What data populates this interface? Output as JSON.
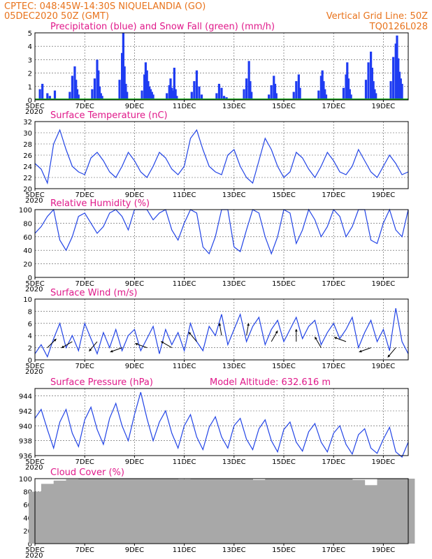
{
  "header": {
    "left_line1": "CPTEC:    048:45W-14:30S   NIQUELANDIA (GO)",
    "left_line2": "05DEC2020 50Z (GMT)",
    "right_line1": "Vertical Grid Line: 50Z",
    "right_line2": "TQ0126L028"
  },
  "x_axis": {
    "tick_labels": [
      "5DEC",
      "7DEC",
      "9DEC",
      "11DEC",
      "13DEC",
      "15DEC",
      "17DEC",
      "19DEC"
    ],
    "year_label": "2020"
  },
  "colors": {
    "precip": "#1f3cf2",
    "snow": "#1aa51a",
    "line": "#2244e6",
    "cloud": "#a8a8a8",
    "header": "#e8731c",
    "title": "#e0198a"
  },
  "chart_data": [
    {
      "type": "bar",
      "title": "Precipitation (blue) and Snow Fall (green) (mm/h)",
      "ylim": [
        0,
        5
      ],
      "yticks": [
        0,
        1,
        2,
        3,
        4,
        5
      ],
      "x_unit": "days since 05DEC 00Z",
      "series": [
        {
          "name": "Precipitation",
          "x": [
            0.2,
            0.3,
            0.5,
            0.6,
            0.8,
            1.4,
            1.5,
            1.6,
            1.65,
            1.7,
            1.75,
            2.3,
            2.4,
            2.5,
            2.55,
            2.6,
            2.65,
            2.7,
            3.4,
            3.5,
            3.55,
            3.6,
            3.65,
            3.7,
            4.3,
            4.4,
            4.45,
            4.5,
            4.55,
            4.6,
            4.65,
            4.7,
            4.75,
            5.3,
            5.4,
            5.45,
            5.5,
            5.55,
            5.6,
            5.65,
            5.7,
            6.3,
            6.4,
            6.5,
            6.6,
            6.7,
            7.3,
            7.4,
            7.5,
            7.6,
            7.7,
            8.4,
            8.5,
            8.6,
            8.65,
            8.7,
            9.4,
            9.5,
            9.6,
            9.65,
            9.7,
            10.4,
            10.5,
            10.6,
            10.65,
            11.4,
            11.5,
            11.55,
            11.6,
            11.65,
            11.7,
            12.4,
            12.5,
            12.55,
            12.6,
            12.65,
            12.7,
            13.3,
            13.4,
            13.5,
            13.55,
            13.6,
            13.65,
            13.7,
            14.3,
            14.4,
            14.5,
            14.55,
            14.6,
            14.65,
            14.7,
            14.75
          ],
          "values": [
            0.8,
            1.2,
            0.5,
            0.3,
            0.7,
            0.6,
            1.8,
            2.5,
            1.5,
            0.8,
            0.4,
            0.8,
            1.6,
            3.0,
            2.2,
            1.0,
            0.5,
            0.3,
            1.5,
            3.5,
            5.0,
            2.5,
            1.2,
            0.6,
            0.7,
            1.9,
            2.8,
            2.2,
            1.4,
            1.0,
            0.8,
            0.6,
            0.4,
            0.5,
            1.1,
            1.6,
            0.9,
            0.7,
            2.4,
            0.8,
            0.3,
            0.6,
            1.4,
            2.2,
            1.0,
            0.4,
            0.5,
            1.2,
            0.9,
            0.3,
            0.2,
            0.8,
            1.6,
            2.9,
            1.4,
            0.6,
            0.4,
            1.1,
            1.8,
            1.2,
            0.5,
            0.6,
            1.4,
            1.9,
            0.9,
            0.7,
            1.8,
            2.2,
            1.4,
            0.8,
            0.4,
            0.9,
            1.9,
            2.8,
            1.6,
            0.8,
            0.4,
            1.5,
            2.8,
            3.6,
            2.4,
            1.4,
            0.8,
            0.5,
            1.4,
            3.2,
            4.2,
            4.8,
            3.1,
            2.1,
            1.6,
            1.2
          ]
        },
        {
          "name": "Snow Fall",
          "x": [
            0,
            15
          ],
          "values": [
            0,
            0
          ]
        }
      ]
    },
    {
      "type": "line",
      "title": "Surface Temperature (nC)",
      "ylim": [
        20,
        32
      ],
      "yticks": [
        20,
        22,
        24,
        26,
        28,
        30,
        32
      ],
      "x_unit": "days since 05DEC 00Z",
      "series": [
        {
          "x": [
            0,
            0.25,
            0.5,
            0.75,
            1,
            1.25,
            1.5,
            1.75,
            2,
            2.25,
            2.5,
            2.75,
            3,
            3.25,
            3.5,
            3.75,
            4,
            4.25,
            4.5,
            4.75,
            5,
            5.25,
            5.5,
            5.75,
            6,
            6.25,
            6.5,
            6.75,
            7,
            7.25,
            7.5,
            7.75,
            8,
            8.25,
            8.5,
            8.75,
            9,
            9.25,
            9.5,
            9.75,
            10,
            10.25,
            10.5,
            10.75,
            11,
            11.25,
            11.5,
            11.75,
            12,
            12.25,
            12.5,
            12.75,
            13,
            13.25,
            13.5,
            13.75,
            14,
            14.25,
            14.5,
            14.75,
            15
          ],
          "values": [
            24.5,
            23.5,
            21,
            28,
            30.5,
            27,
            24,
            23,
            22.5,
            25.5,
            26.5,
            25,
            23,
            22,
            24,
            26.5,
            25,
            23,
            22,
            24,
            26.5,
            25.5,
            23.5,
            22.5,
            24,
            29,
            30.5,
            27,
            24,
            23,
            22.5,
            26,
            27,
            24,
            22,
            21,
            25,
            29,
            27,
            24,
            22,
            23,
            26.5,
            25.5,
            23.5,
            22,
            24,
            26.5,
            25,
            23,
            22.5,
            24,
            27,
            25,
            23,
            22,
            24,
            26,
            24.5,
            22.5,
            23
          ]
        }
      ]
    },
    {
      "type": "line",
      "title": "Relative Humidity (%)",
      "ylim": [
        0,
        100
      ],
      "yticks": [
        0,
        20,
        40,
        60,
        80,
        100
      ],
      "x_unit": "days since 05DEC 00Z",
      "series": [
        {
          "x": [
            0,
            0.25,
            0.5,
            0.75,
            1,
            1.25,
            1.5,
            1.75,
            2,
            2.25,
            2.5,
            2.75,
            3,
            3.25,
            3.5,
            3.75,
            4,
            4.25,
            4.5,
            4.75,
            5,
            5.25,
            5.5,
            5.75,
            6,
            6.25,
            6.5,
            6.75,
            7,
            7.25,
            7.5,
            7.75,
            8,
            8.25,
            8.5,
            8.75,
            9,
            9.25,
            9.5,
            9.75,
            10,
            10.25,
            10.5,
            10.75,
            11,
            11.25,
            11.5,
            11.75,
            12,
            12.25,
            12.5,
            12.75,
            13,
            13.25,
            13.5,
            13.75,
            14,
            14.25,
            14.5,
            14.75,
            15
          ],
          "values": [
            65,
            75,
            90,
            100,
            55,
            40,
            60,
            90,
            95,
            80,
            65,
            75,
            95,
            100,
            90,
            70,
            100,
            100,
            100,
            85,
            95,
            100,
            70,
            55,
            80,
            100,
            95,
            45,
            35,
            60,
            100,
            100,
            45,
            38,
            70,
            100,
            95,
            60,
            35,
            60,
            100,
            95,
            50,
            70,
            100,
            85,
            60,
            75,
            100,
            90,
            60,
            75,
            100,
            100,
            55,
            50,
            80,
            100,
            70,
            60,
            100
          ]
        }
      ]
    },
    {
      "type": "line",
      "title": "Surface Wind (m/s)",
      "ylim": [
        0,
        10
      ],
      "yticks": [
        0,
        2,
        4,
        6,
        8,
        10
      ],
      "x_unit": "days since 05DEC 00Z",
      "series": [
        {
          "x": [
            0,
            0.25,
            0.5,
            0.75,
            1,
            1.25,
            1.5,
            1.75,
            2,
            2.25,
            2.5,
            2.75,
            3,
            3.25,
            3.5,
            3.75,
            4,
            4.25,
            4.5,
            4.75,
            5,
            5.25,
            5.5,
            5.75,
            6,
            6.25,
            6.5,
            6.75,
            7,
            7.25,
            7.5,
            7.75,
            8,
            8.25,
            8.5,
            8.75,
            9,
            9.25,
            9.5,
            9.75,
            10,
            10.25,
            10.5,
            10.75,
            11,
            11.25,
            11.5,
            11.75,
            12,
            12.25,
            12.5,
            12.75,
            13,
            13.25,
            13.5,
            13.75,
            14,
            14.25,
            14.5,
            14.75,
            15
          ],
          "values": [
            1,
            2.5,
            0.5,
            3.5,
            6,
            2,
            4,
            1.5,
            6,
            3.5,
            1,
            4.5,
            2,
            5,
            1.5,
            4,
            5,
            1.5,
            3.5,
            5.5,
            1,
            5,
            2.5,
            4.5,
            1.5,
            6,
            3,
            1.5,
            5.5,
            4,
            7.5,
            2.5,
            5,
            7.5,
            3,
            5.5,
            7,
            2.5,
            5,
            6.5,
            3,
            5,
            7,
            3.5,
            5.5,
            6.5,
            2.5,
            4.5,
            6,
            3.5,
            5,
            7,
            2,
            4.5,
            6.5,
            3,
            5,
            1.5,
            8.5,
            3,
            1
          ]
        },
        {
          "name": "wind-barbs",
          "x": [
            0.5,
            1.5,
            2.5,
            3.5,
            4.5,
            5.5,
            6.5,
            7.5,
            8.5,
            9.5,
            10.5,
            11.5,
            12.5,
            13.5,
            14.5
          ],
          "speed": [
            2,
            3,
            3,
            2,
            2,
            2,
            3,
            4,
            4,
            3,
            3,
            2,
            3,
            2,
            2
          ],
          "dir": [
            45,
            210,
            230,
            200,
            160,
            150,
            130,
            100,
            80,
            60,
            90,
            120,
            160,
            200,
            230
          ]
        }
      ]
    },
    {
      "type": "line",
      "title": "Surface Pressure (hPa)",
      "subtitle": "Model Altitude:  632.616  m",
      "ylim": [
        936,
        945
      ],
      "yticks": [
        936,
        938,
        940,
        942,
        944
      ],
      "x_unit": "days since 05DEC 00Z",
      "series": [
        {
          "x": [
            0,
            0.25,
            0.5,
            0.75,
            1,
            1.25,
            1.5,
            1.75,
            2,
            2.25,
            2.5,
            2.75,
            3,
            3.25,
            3.5,
            3.75,
            4,
            4.25,
            4.5,
            4.75,
            5,
            5.25,
            5.5,
            5.75,
            6,
            6.25,
            6.5,
            6.75,
            7,
            7.25,
            7.5,
            7.75,
            8,
            8.25,
            8.5,
            8.75,
            9,
            9.25,
            9.5,
            9.75,
            10,
            10.25,
            10.5,
            10.75,
            11,
            11.25,
            11.5,
            11.75,
            12,
            12.25,
            12.5,
            12.75,
            13,
            13.25,
            13.5,
            13.75,
            14,
            14.25,
            14.5,
            14.75,
            15
          ],
          "values": [
            941,
            942.2,
            939.5,
            937,
            940.5,
            942.2,
            939,
            937.2,
            940.8,
            942.5,
            939.5,
            937.5,
            941,
            943,
            940,
            938,
            941.5,
            944.5,
            941,
            938,
            940.5,
            942,
            939,
            937,
            940,
            941.5,
            938.5,
            936.8,
            939.8,
            941.2,
            938.5,
            937,
            940,
            941,
            938.2,
            936.8,
            939.6,
            940.8,
            938,
            936.5,
            939.5,
            940.5,
            937.8,
            936.6,
            939.2,
            940.3,
            937.8,
            936.5,
            939,
            940,
            937.5,
            936.2,
            938.8,
            939.6,
            937,
            936.3,
            938.2,
            939.8,
            936.5,
            935.8,
            937.8
          ]
        }
      ]
    },
    {
      "type": "bar",
      "title": "Cloud Cover (%)",
      "ylim": [
        0,
        100
      ],
      "yticks": [
        0,
        20,
        40,
        60,
        80,
        100
      ],
      "x_unit": "days since 05DEC 00Z",
      "series": [
        {
          "x": [
            0,
            0.5,
            1,
            1.5,
            2,
            2.5,
            3,
            3.5,
            4,
            4.5,
            5,
            5.5,
            6,
            6.5,
            7,
            7.5,
            8,
            8.5,
            9,
            9.5,
            10,
            10.5,
            11,
            11.5,
            12,
            12.5,
            13,
            13.5,
            14,
            14.5,
            15
          ],
          "values": [
            80,
            92,
            97,
            99,
            100,
            100,
            100,
            100,
            100,
            100,
            100,
            100,
            99,
            100,
            100,
            100,
            100,
            100,
            98,
            100,
            100,
            100,
            100,
            100,
            100,
            100,
            98,
            90,
            100,
            100,
            100
          ]
        }
      ]
    }
  ]
}
